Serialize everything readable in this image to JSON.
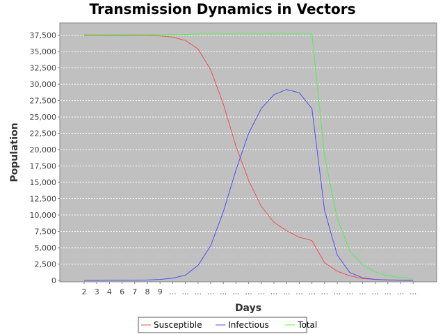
{
  "chart_data": {
    "type": "line",
    "title": "Transmission Dynamics in Vectors",
    "xlabel": "Days",
    "ylabel": "Population",
    "ylim": [
      0,
      39375
    ],
    "yticks": [
      "0",
      "2,500",
      "5,000",
      "7,500",
      "10,000",
      "12,500",
      "15,000",
      "17,500",
      "20,000",
      "22,500",
      "25,000",
      "27,500",
      "30,000",
      "32,500",
      "35,000",
      "37,500"
    ],
    "ytick_values": [
      0,
      2500,
      5000,
      7500,
      10000,
      12500,
      15000,
      17500,
      20000,
      22500,
      25000,
      27500,
      30000,
      32500,
      35000,
      37500
    ],
    "categories": [
      "2",
      "3",
      "4",
      "6",
      "7",
      "8",
      "9",
      "...",
      "...",
      "...",
      "...",
      "...",
      "...",
      "...",
      "...",
      "...",
      "...",
      "...",
      "...",
      "...",
      "...",
      "...",
      "...",
      "...",
      "...",
      "...",
      "..."
    ],
    "grid": true,
    "legend_position": "bottom",
    "background": "#c0c0c0",
    "series": [
      {
        "name": "Susceptible",
        "color": "#f05050",
        "values": [
          37500,
          37500,
          37500,
          37500,
          37500,
          37500,
          37400,
          37200,
          36700,
          35400,
          32200,
          27000,
          20500,
          15300,
          11300,
          8900,
          7600,
          6600,
          6100,
          2700,
          1400,
          700,
          300,
          150,
          80,
          50,
          30
        ]
      },
      {
        "name": "Infectious",
        "color": "#5050f0",
        "values": [
          0,
          5,
          20,
          30,
          40,
          60,
          150,
          350,
          800,
          2300,
          5300,
          10500,
          16900,
          22500,
          26300,
          28400,
          29200,
          28700,
          26300,
          10700,
          3900,
          1200,
          400,
          150,
          60,
          30,
          10
        ]
      },
      {
        "name": "Total",
        "color": "#50f050",
        "values": [
          37600,
          37600,
          37600,
          37600,
          37600,
          37600,
          37600,
          37600,
          37600,
          37700,
          37700,
          37700,
          37700,
          37700,
          37700,
          37700,
          37700,
          37700,
          37700,
          19000,
          9500,
          4500,
          2400,
          1300,
          700,
          450,
          300
        ]
      }
    ]
  }
}
